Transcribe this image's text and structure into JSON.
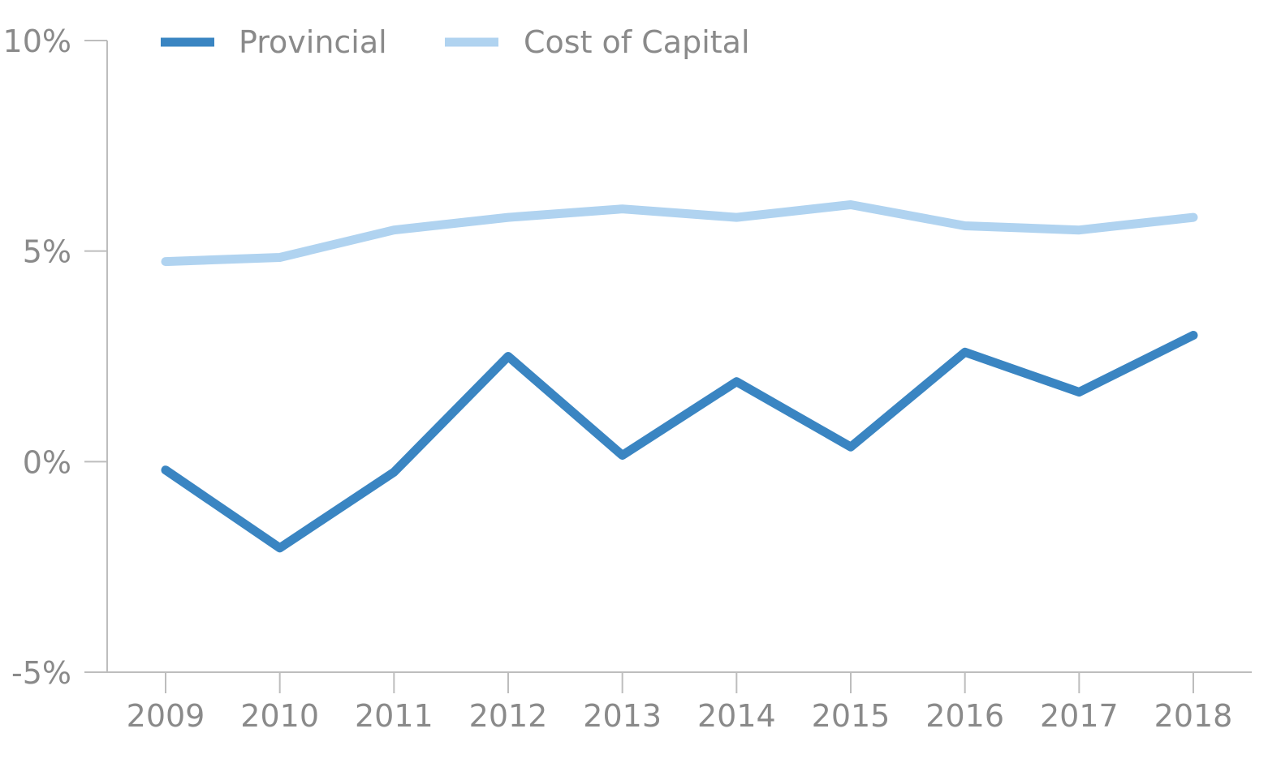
{
  "chart_data": {
    "type": "line",
    "title": "",
    "xlabel": "",
    "ylabel": "",
    "categories": [
      "2009",
      "2010",
      "2011",
      "2012",
      "2013",
      "2014",
      "2015",
      "2016",
      "2017",
      "2018"
    ],
    "ylim": [
      -5,
      10
    ],
    "yticks": [
      -5,
      0,
      5,
      10
    ],
    "ytick_labels": [
      "-5%",
      "0%",
      "5%",
      "10%"
    ],
    "grid": false,
    "legend_position": "top-left",
    "series": [
      {
        "name": "Provincial",
        "color": "#3a85c2",
        "values": [
          -0.2,
          -2.05,
          -0.25,
          2.5,
          0.15,
          1.9,
          0.35,
          2.6,
          1.65,
          3.0
        ]
      },
      {
        "name": "Cost of Capital",
        "color": "#b0d3f0",
        "values": [
          4.75,
          4.85,
          5.5,
          5.8,
          6.0,
          5.8,
          6.1,
          5.6,
          5.5,
          5.8
        ]
      }
    ],
    "axis_color": "#bdbdbd",
    "label_color": "#8a8a8a"
  }
}
